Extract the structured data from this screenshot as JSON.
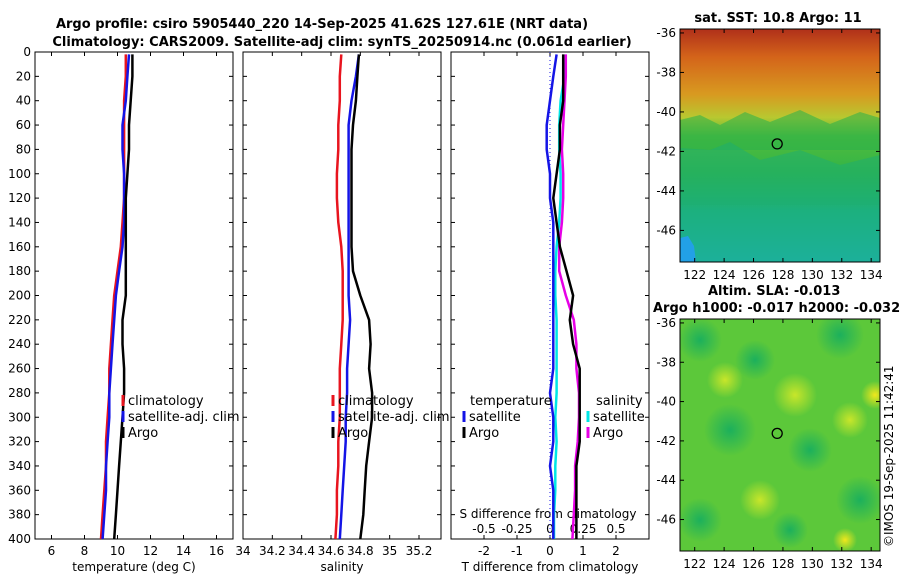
{
  "titles": {
    "line1": "Argo profile: csiro 5905440_220 14-Sep-2025 41.62S 127.61E (NRT data)",
    "line2": "Climatology: CARS2009. Satellite-adj clim: synTS_20250914.nc (0.061d earlier)",
    "sst": "sat. SST: 10.8 Argo: 11",
    "sla1": "Altim. SLA: -0.013",
    "sla2": "Argo h1000: -0.017 h2000: -0.032",
    "credit": "©IMOS 19-Sep-2025 11:42:41"
  },
  "colors": {
    "climatology": "#e8141e",
    "satellite": "#1414e6",
    "argo": "#000000",
    "cyan": "#00e6e6",
    "magenta": "#e600e6"
  },
  "legends": {
    "temp": [
      "climatology",
      "satellite-adj. clim",
      "Argo"
    ],
    "sal": [
      "climatology",
      "satellite-adj. clim",
      "Argo"
    ],
    "diff_t_title": "temperature",
    "diff_s_title": "salinity",
    "diff_t": [
      "satellite",
      "Argo"
    ],
    "diff_s": [
      "satellite",
      "Argo"
    ]
  },
  "chart_data": [
    {
      "type": "line",
      "panel": "temperature",
      "xlabel": "temperature (deg C)",
      "ylabel": "",
      "xlim": [
        5,
        17
      ],
      "ylim": [
        400,
        0
      ],
      "xticks": [
        "6",
        "8",
        "10",
        "12",
        "14",
        "16"
      ],
      "yticks": [
        "0",
        "20",
        "40",
        "60",
        "80",
        "100",
        "120",
        "140",
        "160",
        "180",
        "200",
        "220",
        "240",
        "260",
        "280",
        "300",
        "320",
        "340",
        "360",
        "380",
        "400"
      ],
      "depth": [
        2,
        20,
        40,
        60,
        80,
        100,
        120,
        140,
        160,
        180,
        200,
        220,
        240,
        260,
        280,
        300,
        320,
        340,
        360,
        380,
        400
      ],
      "series": [
        {
          "name": "climatology",
          "values": [
            10.5,
            10.5,
            10.4,
            10.4,
            10.4,
            10.4,
            10.4,
            10.3,
            10.2,
            10.0,
            9.8,
            9.7,
            9.6,
            9.5,
            9.5,
            9.4,
            9.3,
            9.3,
            9.2,
            9.1,
            9.0
          ]
        },
        {
          "name": "satellite-adj. clim",
          "values": [
            10.7,
            10.6,
            10.5,
            10.3,
            10.3,
            10.4,
            10.4,
            10.4,
            10.3,
            10.1,
            9.9,
            9.8,
            9.7,
            9.6,
            9.5,
            9.5,
            9.4,
            9.3,
            9.3,
            9.2,
            9.1
          ]
        },
        {
          "name": "Argo",
          "values": [
            10.9,
            10.9,
            10.8,
            10.7,
            10.7,
            10.6,
            10.5,
            10.5,
            10.5,
            10.5,
            10.5,
            10.3,
            10.3,
            10.4,
            10.4,
            10.3,
            10.2,
            10.1,
            10.0,
            9.9,
            9.8
          ]
        }
      ]
    },
    {
      "type": "line",
      "panel": "salinity",
      "xlabel": "salinity",
      "xlim": [
        34.0,
        35.35
      ],
      "ylim": [
        400,
        0
      ],
      "xticks": [
        "34",
        "34.2",
        "34.4",
        "34.6",
        "34.8",
        "35",
        "35.2"
      ],
      "depth": [
        2,
        20,
        40,
        60,
        80,
        100,
        120,
        140,
        160,
        180,
        200,
        220,
        240,
        260,
        280,
        300,
        320,
        340,
        360,
        380,
        400
      ],
      "series": [
        {
          "name": "climatology",
          "values": [
            34.67,
            34.66,
            34.66,
            34.65,
            34.65,
            34.64,
            34.64,
            34.65,
            34.67,
            34.68,
            34.68,
            34.68,
            34.67,
            34.66,
            34.66,
            34.66,
            34.65,
            34.65,
            34.64,
            34.64,
            34.63
          ]
        },
        {
          "name": "satellite-adj. clim",
          "values": [
            34.79,
            34.77,
            34.74,
            34.72,
            34.72,
            34.72,
            34.72,
            34.72,
            34.72,
            34.72,
            34.72,
            34.73,
            34.72,
            34.71,
            34.71,
            34.7,
            34.7,
            34.69,
            34.68,
            34.67,
            34.66
          ]
        },
        {
          "name": "Argo",
          "values": [
            34.79,
            34.78,
            34.77,
            34.75,
            34.74,
            34.74,
            34.74,
            34.74,
            34.74,
            34.75,
            34.8,
            34.86,
            34.87,
            34.86,
            34.88,
            34.88,
            34.86,
            34.84,
            34.83,
            34.82,
            34.8
          ]
        }
      ]
    },
    {
      "type": "line",
      "panel": "difference",
      "xlabel": "T difference from climatology",
      "slabel": "S difference from climatology",
      "xlim": [
        -3,
        3
      ],
      "slim": [
        -0.75,
        0.75
      ],
      "ylim": [
        400,
        0
      ],
      "xticks": [
        "-2",
        "-1",
        "0",
        "1",
        "2"
      ],
      "sticks": [
        "-0.5",
        "-0.25",
        "0",
        "0.25",
        "0.5"
      ],
      "depth": [
        2,
        20,
        40,
        60,
        80,
        100,
        120,
        140,
        160,
        180,
        200,
        220,
        240,
        260,
        280,
        300,
        320,
        340,
        360,
        380,
        400
      ],
      "series": [
        {
          "name": "T satellite",
          "values": [
            0.2,
            0.1,
            0.0,
            -0.1,
            -0.1,
            0.0,
            0.0,
            0.1,
            0.1,
            0.1,
            0.1,
            0.1,
            0.1,
            0.1,
            0.0,
            0.1,
            0.1,
            0.0,
            0.1,
            0.1,
            0.1
          ]
        },
        {
          "name": "T Argo",
          "values": [
            0.4,
            0.4,
            0.4,
            0.3,
            0.3,
            0.2,
            0.1,
            0.2,
            0.3,
            0.5,
            0.7,
            0.6,
            0.7,
            0.9,
            0.9,
            0.9,
            0.9,
            0.8,
            0.8,
            0.8,
            0.8
          ]
        },
        {
          "name": "S satellite",
          "values": [
            0.12,
            0.11,
            0.08,
            0.07,
            0.07,
            0.08,
            0.08,
            0.07,
            0.05,
            0.04,
            0.04,
            0.05,
            0.05,
            0.05,
            0.05,
            0.04,
            0.05,
            0.04,
            0.04,
            0.03,
            0.03
          ]
        },
        {
          "name": "S Argo",
          "values": [
            0.12,
            0.12,
            0.11,
            0.1,
            0.09,
            0.1,
            0.1,
            0.09,
            0.07,
            0.07,
            0.12,
            0.18,
            0.2,
            0.2,
            0.22,
            0.22,
            0.21,
            0.19,
            0.19,
            0.18,
            0.17
          ]
        }
      ]
    },
    {
      "type": "heatmap",
      "panel": "sst-map",
      "title": "sat. SST: 10.8 Argo: 11",
      "xlim": [
        121,
        134.6
      ],
      "ylim": [
        -47.6,
        -35.8
      ],
      "xticks": [
        "122",
        "124",
        "126",
        "128",
        "130",
        "132",
        "134"
      ],
      "yticks": [
        "-36",
        "-38",
        "-40",
        "-42",
        "-44",
        "-46"
      ],
      "marker": {
        "lon": 127.61,
        "lat": -41.62
      }
    },
    {
      "type": "heatmap",
      "panel": "sla-map",
      "title": "Altim. SLA: -0.013",
      "xlim": [
        121,
        134.6
      ],
      "ylim": [
        -47.6,
        -35.8
      ],
      "xticks": [
        "122",
        "124",
        "126",
        "128",
        "130",
        "132",
        "134"
      ],
      "yticks": [
        "-36",
        "-38",
        "-40",
        "-42",
        "-44",
        "-46"
      ],
      "marker": {
        "lon": 127.61,
        "lat": -41.62
      }
    }
  ]
}
